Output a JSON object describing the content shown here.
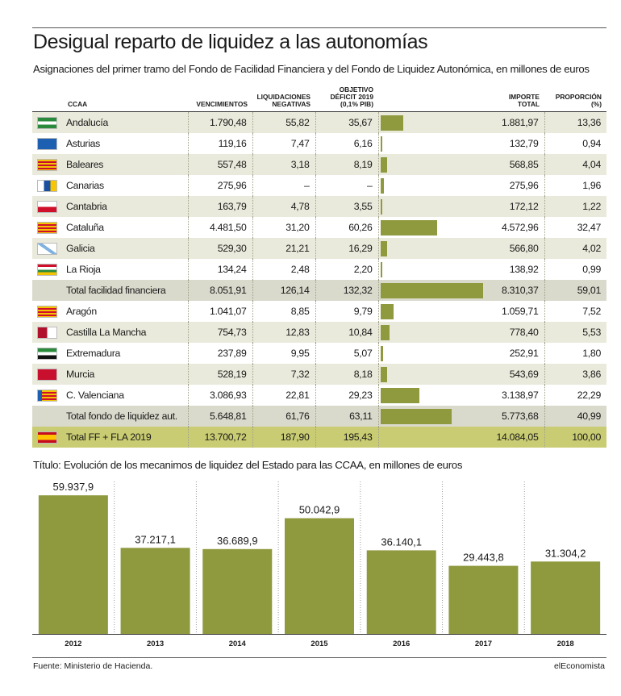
{
  "header": {
    "title": "Desigual reparto de liquidez a las autonomías",
    "subtitle": "Asignaciones del primer tramo del Fondo de Facilidad Financiera y del Fondo de Liquidez Autonómica, en millones de euros"
  },
  "table": {
    "columns": {
      "ccaa": "CCAA",
      "vencimientos": "VENCIMIENTOS",
      "liquidaciones_1": "LIQUIDACIONES",
      "liquidaciones_2": "NEGATIVAS",
      "objetivo_1": "OBJETIVO",
      "objetivo_2": "DÉFICIT 2019",
      "objetivo_3": "(0,1% PIB)",
      "importe_1": "IMPORTE",
      "importe_2": "TOTAL",
      "proporcion_1": "PROPORCIÓN",
      "proporcion_2": "(%)"
    },
    "rows": [
      {
        "name": "Andalucía",
        "flag": "andalucia",
        "vencimientos": "1.790,48",
        "liquidaciones": "55,82",
        "objetivo": "35,67",
        "importe": "1.881,97",
        "importe_value": 1881.97,
        "proporcion": "13,36",
        "type": "odd"
      },
      {
        "name": "Asturias",
        "flag": "asturias",
        "vencimientos": "119,16",
        "liquidaciones": "7,47",
        "objetivo": "6,16",
        "importe": "132,79",
        "importe_value": 132.79,
        "proporcion": "0,94",
        "type": "even"
      },
      {
        "name": "Baleares",
        "flag": "baleares",
        "vencimientos": "557,48",
        "liquidaciones": "3,18",
        "objetivo": "8,19",
        "importe": "568,85",
        "importe_value": 568.85,
        "proporcion": "4,04",
        "type": "odd"
      },
      {
        "name": "Canarias",
        "flag": "canarias",
        "vencimientos": "275,96",
        "liquidaciones": "–",
        "objetivo": "–",
        "importe": "275,96",
        "importe_value": 275.96,
        "proporcion": "1,96",
        "type": "even"
      },
      {
        "name": "Cantabria",
        "flag": "cantabria",
        "vencimientos": "163,79",
        "liquidaciones": "4,78",
        "objetivo": "3,55",
        "importe": "172,12",
        "importe_value": 172.12,
        "proporcion": "1,22",
        "type": "odd"
      },
      {
        "name": "Cataluña",
        "flag": "cataluna",
        "vencimientos": "4.481,50",
        "liquidaciones": "31,20",
        "objetivo": "60,26",
        "importe": "4.572,96",
        "importe_value": 4572.96,
        "proporcion": "32,47",
        "type": "even"
      },
      {
        "name": "Galicia",
        "flag": "galicia",
        "vencimientos": "529,30",
        "liquidaciones": "21,21",
        "objetivo": "16,29",
        "importe": "566,80",
        "importe_value": 566.8,
        "proporcion": "4,02",
        "type": "odd"
      },
      {
        "name": "La Rioja",
        "flag": "rioja",
        "vencimientos": "134,24",
        "liquidaciones": "2,48",
        "objetivo": "2,20",
        "importe": "138,92",
        "importe_value": 138.92,
        "proporcion": "0,99",
        "type": "even"
      },
      {
        "name": "Total facilidad financiera",
        "flag": "",
        "vencimientos": "8.051,91",
        "liquidaciones": "126,14",
        "objetivo": "132,32",
        "importe": "8.310,37",
        "importe_value": 8310.37,
        "proporcion": "59,01",
        "type": "total"
      },
      {
        "name": "Aragón",
        "flag": "aragon",
        "vencimientos": "1.041,07",
        "liquidaciones": "8,85",
        "objetivo": "9,79",
        "importe": "1.059,71",
        "importe_value": 1059.71,
        "proporcion": "7,52",
        "type": "even"
      },
      {
        "name": "Castilla La Mancha",
        "flag": "clm",
        "vencimientos": "754,73",
        "liquidaciones": "12,83",
        "objetivo": "10,84",
        "importe": "778,40",
        "importe_value": 778.4,
        "proporcion": "5,53",
        "type": "odd"
      },
      {
        "name": "Extremadura",
        "flag": "extremadura",
        "vencimientos": "237,89",
        "liquidaciones": "9,95",
        "objetivo": "5,07",
        "importe": "252,91",
        "importe_value": 252.91,
        "proporcion": "1,80",
        "type": "even"
      },
      {
        "name": "Murcia",
        "flag": "murcia",
        "vencimientos": "528,19",
        "liquidaciones": "7,32",
        "objetivo": "8,18",
        "importe": "543,69",
        "importe_value": 543.69,
        "proporcion": "3,86",
        "type": "odd"
      },
      {
        "name": "C. Valenciana",
        "flag": "valencia",
        "vencimientos": "3.086,93",
        "liquidaciones": "22,81",
        "objetivo": "29,23",
        "importe": "3.138,97",
        "importe_value": 3138.97,
        "proporcion": "22,29",
        "type": "even"
      },
      {
        "name": "Total fondo de liquidez aut.",
        "flag": "",
        "vencimientos": "5.648,81",
        "liquidaciones": "61,76",
        "objetivo": "63,11",
        "importe": "5.773,68",
        "importe_value": 5773.68,
        "proporcion": "40,99",
        "type": "total"
      },
      {
        "name": "Total FF + FLA 2019",
        "flag": "espana",
        "vencimientos": "13.700,72",
        "liquidaciones": "187,90",
        "objetivo": "195,43",
        "importe": "14.084,05",
        "importe_value": 14084.05,
        "proporcion": "100,00",
        "type": "grand"
      }
    ]
  },
  "colors": {
    "bar": "#8f993d",
    "row_odd": "#eaeadc",
    "row_total": "#d9d9cc",
    "row_grand": "#c9cc72"
  },
  "chart_data": {
    "type": "bar",
    "title": "Título: Evolución de los mecanimos de liquidez del Estado para las CCAA, en millones de euros",
    "categories": [
      "2012",
      "2013",
      "2014",
      "2015",
      "2016",
      "2017",
      "2018"
    ],
    "values": [
      59937.9,
      37217.1,
      36689.9,
      50042.9,
      36140.1,
      29443.8,
      31304.2
    ],
    "labels": [
      "59.937,9",
      "37.217,1",
      "36.689,9",
      "50.042,9",
      "36.140,1",
      "29.443,8",
      "31.304,2"
    ],
    "ylim": [
      0,
      60000
    ],
    "grid": false,
    "legend": "none"
  },
  "footer": {
    "source": "Fuente: Ministerio de Hacienda.",
    "brand": "elEconomista"
  }
}
